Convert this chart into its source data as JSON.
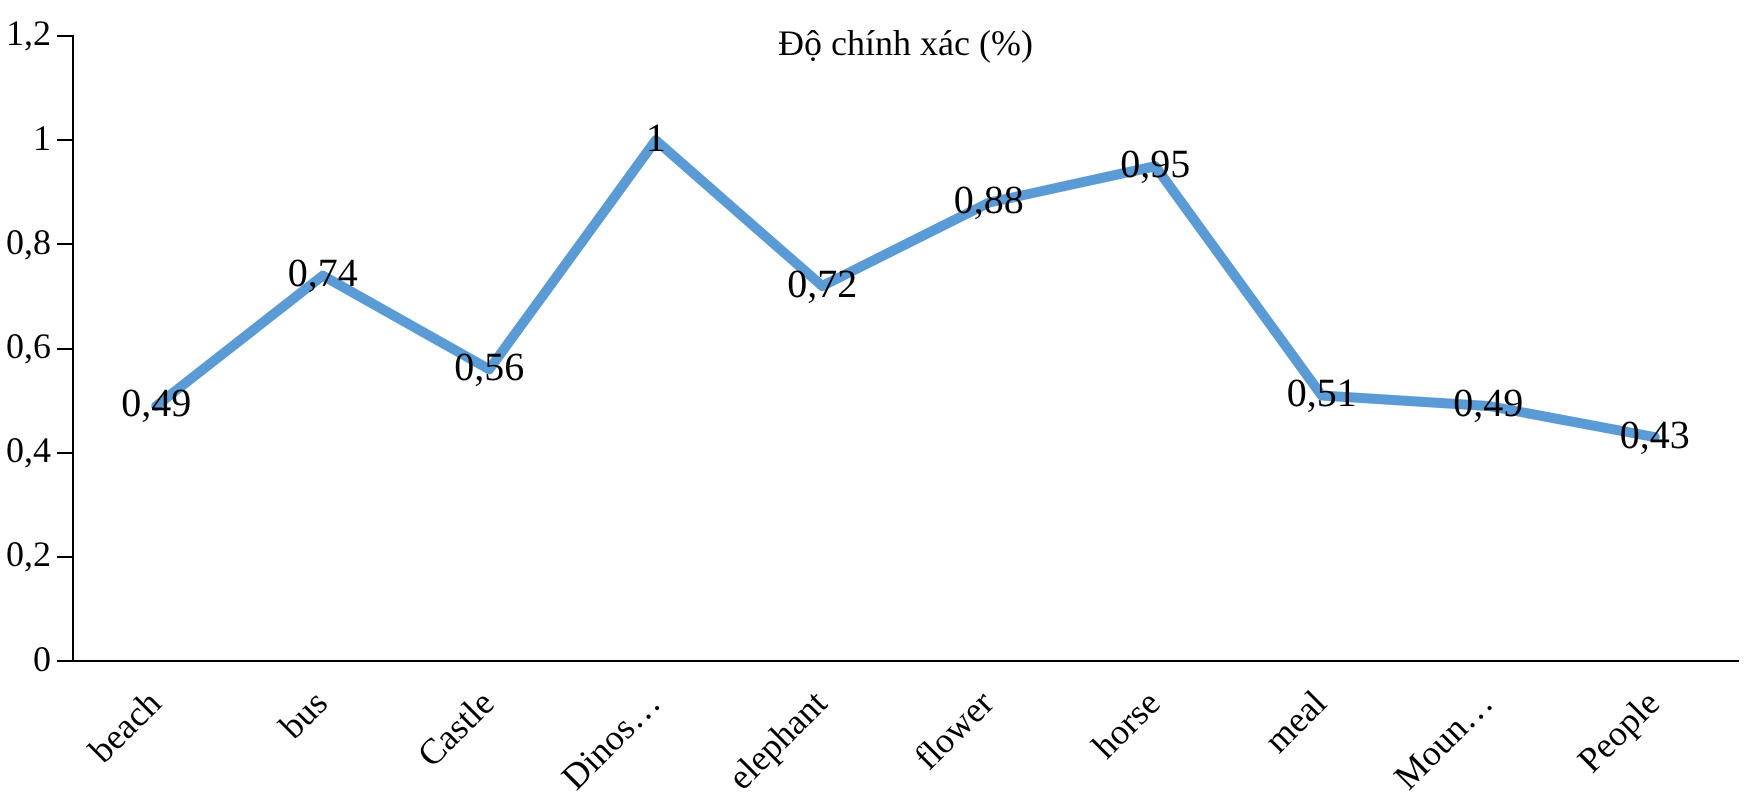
{
  "chart_data": {
    "type": "line",
    "title": "Độ chính xác (%)",
    "categories": [
      "beach",
      "bus",
      "Castle",
      "Dinos…",
      "elephant",
      "flower",
      "horse",
      "meal",
      "Moun…",
      "People"
    ],
    "series": [
      {
        "color": "#5b9bd5",
        "values": [
          0.49,
          0.74,
          0.56,
          1,
          0.72,
          0.88,
          0.95,
          0.51,
          0.49,
          0.43
        ]
      }
    ],
    "value_labels": [
      "0,49",
      "0,74",
      "0,56",
      "1",
      "0,72",
      "0,88",
      "0,95",
      "0,51",
      "0,49",
      "0,43"
    ],
    "ylim": [
      0,
      1.2
    ],
    "yticks": [
      0,
      {
        "value": 0.2,
        "label": "0,2"
      },
      {
        "value": 0.4,
        "label": "0,4"
      },
      {
        "value": 0.6,
        "label": "0,6"
      },
      {
        "value": 0.8,
        "label": "0,8"
      },
      1,
      {
        "value": 1.2,
        "label": "1,2"
      }
    ],
    "grid": false,
    "legend": false,
    "marker": "none",
    "line_style": "solid"
  }
}
